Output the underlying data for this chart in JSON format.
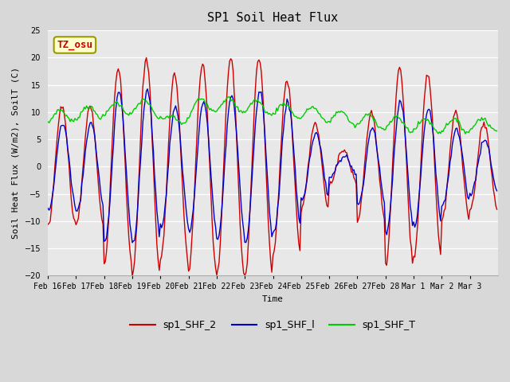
{
  "title": "SP1 Soil Heat Flux",
  "xlabel": "Time",
  "ylabel": "Soil Heat Flux (W/m2), SoilT (C)",
  "ylim": [
    -20,
    25
  ],
  "fig_bg": "#d8d8d8",
  "ax_bg": "#e8e8e8",
  "tz_label": "TZ_osu",
  "tz_color": "#cc0000",
  "tz_bg": "#ffffcc",
  "tz_border": "#999900",
  "legend_entries": [
    "sp1_SHF_2",
    "sp1_SHF_l",
    "sp1_SHF_T"
  ],
  "line_colors": [
    "#cc0000",
    "#0000cc",
    "#00cc00"
  ],
  "x_tick_labels": [
    "Feb 16",
    "Feb 17",
    "Feb 18",
    "Feb 19",
    "Feb 20",
    "Feb 21",
    "Feb 22",
    "Feb 23",
    "Feb 24",
    "Feb 25",
    "Feb 26",
    "Feb 27",
    "Feb 28",
    "Mar 1",
    "Mar 2",
    "Mar 3"
  ],
  "yticks": [
    -20,
    -15,
    -10,
    -5,
    0,
    5,
    10,
    15,
    20,
    25
  ],
  "font_family": "monospace",
  "title_fontsize": 11,
  "label_fontsize": 8,
  "tick_fontsize": 7,
  "legend_fontsize": 9
}
